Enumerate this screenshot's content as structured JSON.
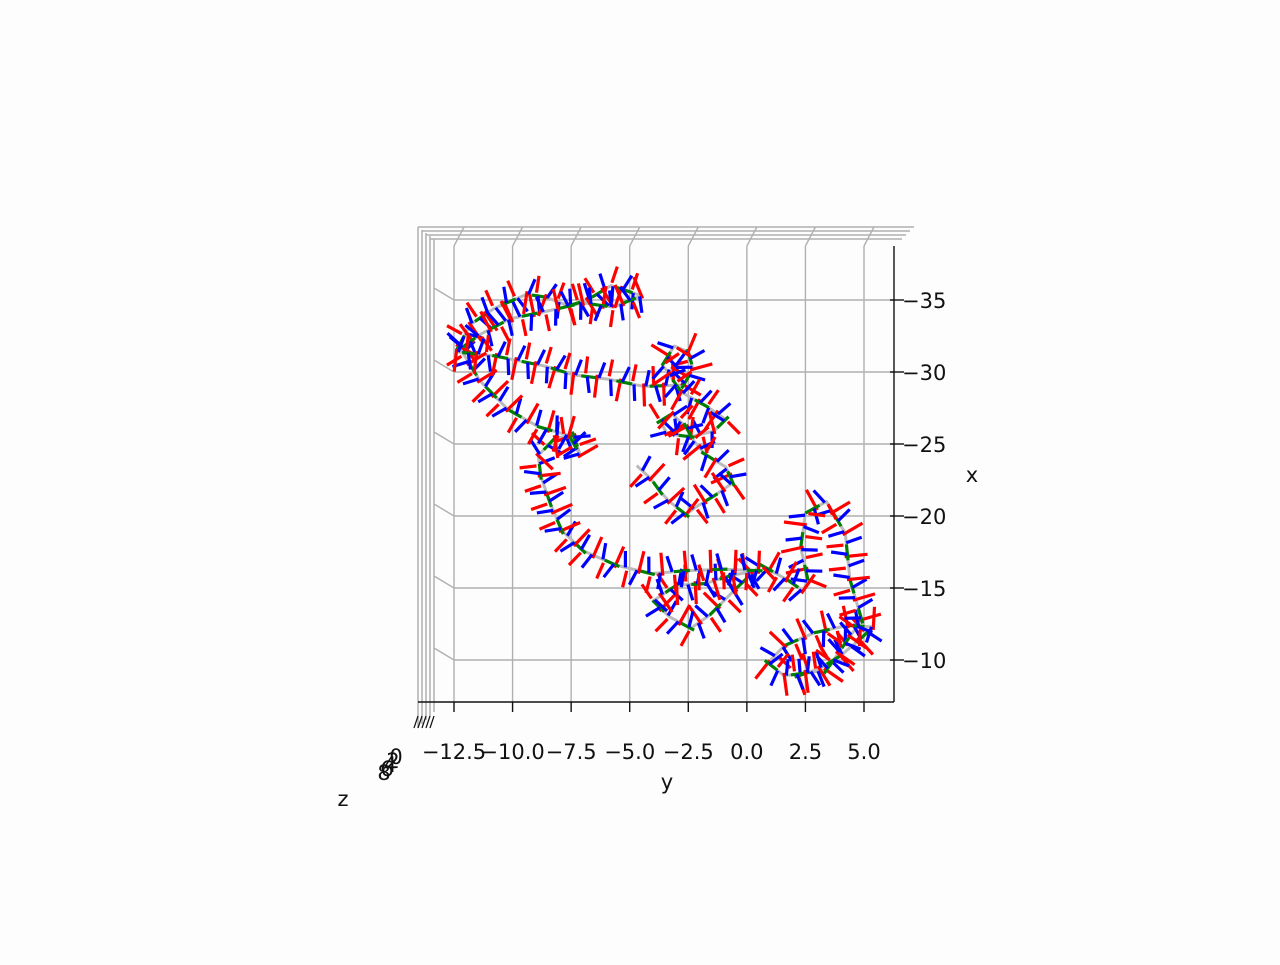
{
  "chart_data": {
    "type": "line",
    "projection": "3d",
    "xlabel": "y",
    "ylabel": "x",
    "zlabel": "z",
    "xlim": [
      -14,
      6
    ],
    "ylim": [
      -38,
      -6
    ],
    "xticks": [
      -12.5,
      -10.0,
      -7.5,
      -5.0,
      -2.5,
      0.0,
      2.5,
      5.0
    ],
    "xtick_labels": [
      "−12.5",
      "−10.0",
      "−7.5",
      "−5.0",
      "−2.5",
      "0.0",
      "2.5",
      "5.0"
    ],
    "yticks": [
      -35,
      -30,
      -25,
      -20,
      -15,
      -10
    ],
    "ytick_labels": [
      "−35",
      "−30",
      "−25",
      "−20",
      "−15",
      "−10"
    ],
    "zticks": [
      0,
      2,
      4,
      6,
      8
    ],
    "ztick_labels": [
      "0",
      "2",
      "4",
      "6",
      "8"
    ],
    "grid": true,
    "series_colors": {
      "backbone": "#bbbbbb",
      "axis_a": "#ff0000",
      "axis_b": "#008000",
      "axis_c": "#0000ff"
    },
    "backbone": [
      [
        2.2,
        -8.9
      ],
      [
        3.1,
        -9.4
      ],
      [
        4.0,
        -10.3
      ],
      [
        4.8,
        -11.4
      ],
      [
        5.4,
        -12.3
      ],
      [
        4.3,
        -12.4
      ],
      [
        2.9,
        -11.9
      ],
      [
        1.6,
        -11.0
      ],
      [
        0.9,
        -9.8
      ],
      [
        1.6,
        -8.9
      ],
      [
        3.4,
        -9.3
      ],
      [
        4.9,
        -12.8
      ],
      [
        4.4,
        -15.6
      ],
      [
        4.2,
        -18.8
      ],
      [
        3.4,
        -21.0
      ],
      [
        2.5,
        -20.2
      ],
      [
        2.3,
        -17.8
      ],
      [
        2.6,
        -15.6
      ],
      [
        2.4,
        -14.8
      ],
      [
        1.7,
        -15.6
      ],
      [
        0.6,
        -16.6
      ],
      [
        -0.5,
        -14.9
      ],
      [
        -1.6,
        -13.1
      ],
      [
        -2.4,
        -12.2
      ],
      [
        -3.3,
        -13.0
      ],
      [
        -4.0,
        -14.1
      ],
      [
        -3.0,
        -15.2
      ],
      [
        -1.8,
        -15.3
      ],
      [
        -0.6,
        -15.9
      ],
      [
        0.5,
        -16.2
      ],
      [
        -1.0,
        -16.3
      ],
      [
        -2.6,
        -16.2
      ],
      [
        -4.1,
        -16.0
      ],
      [
        -5.6,
        -16.6
      ],
      [
        -7.0,
        -17.6
      ],
      [
        -7.9,
        -19.0
      ],
      [
        -8.4,
        -20.9
      ],
      [
        -8.8,
        -22.8
      ],
      [
        -8.9,
        -24.2
      ],
      [
        -8.2,
        -25.4
      ],
      [
        -7.4,
        -25.6
      ],
      [
        -7.1,
        -24.2
      ],
      [
        -7.6,
        -25.6
      ],
      [
        -8.9,
        -26.2
      ],
      [
        -10.2,
        -27.4
      ],
      [
        -11.4,
        -29.4
      ],
      [
        -12.3,
        -31.8
      ],
      [
        -11.8,
        -33.3
      ],
      [
        -10.8,
        -34.4
      ],
      [
        -9.4,
        -35.4
      ],
      [
        -8.6,
        -35.2
      ],
      [
        -7.6,
        -34.6
      ],
      [
        -6.8,
        -35.0
      ],
      [
        -5.8,
        -36.0
      ],
      [
        -4.5,
        -35.3
      ],
      [
        -5.7,
        -34.5
      ],
      [
        -7.0,
        -34.8
      ],
      [
        -8.6,
        -34.2
      ],
      [
        -10.1,
        -33.7
      ],
      [
        -11.4,
        -32.6
      ],
      [
        -12.4,
        -31.4
      ],
      [
        -10.7,
        -31.1
      ],
      [
        -8.6,
        -30.4
      ],
      [
        -7.4,
        -29.8
      ],
      [
        -5.9,
        -29.5
      ],
      [
        -4.4,
        -29.0
      ],
      [
        -2.7,
        -29.1
      ],
      [
        -2.3,
        -30.2
      ],
      [
        -2.5,
        -31.4
      ],
      [
        -3.1,
        -31.8
      ],
      [
        -3.6,
        -30.5
      ],
      [
        -2.8,
        -28.6
      ],
      [
        -1.7,
        -27.6
      ],
      [
        -0.9,
        -26.7
      ],
      [
        -1.4,
        -25.9
      ],
      [
        -2.4,
        -25.5
      ],
      [
        -3.4,
        -25.7
      ],
      [
        -3.7,
        -26.6
      ],
      [
        -3.2,
        -27.1
      ],
      [
        -2.6,
        -26.2
      ],
      [
        -2.3,
        -25.3
      ],
      [
        -1.8,
        -24.3
      ],
      [
        -0.9,
        -23.4
      ],
      [
        -0.6,
        -22.3
      ],
      [
        -1.4,
        -21.4
      ],
      [
        -2.2,
        -20.6
      ],
      [
        -2.6,
        -20.1
      ],
      [
        -3.3,
        -21.0
      ],
      [
        -3.7,
        -21.7
      ],
      [
        -4.1,
        -22.6
      ],
      [
        -4.7,
        -23.5
      ]
    ],
    "frame_glyphs": [
      {
        "color": "#ff0000",
        "offset": [
          10,
          2
        ]
      },
      {
        "color": "#008000",
        "offset": [
          4,
          8
        ]
      },
      {
        "color": "#0000ff",
        "offset": [
          -3,
          -9
        ]
      }
    ]
  }
}
